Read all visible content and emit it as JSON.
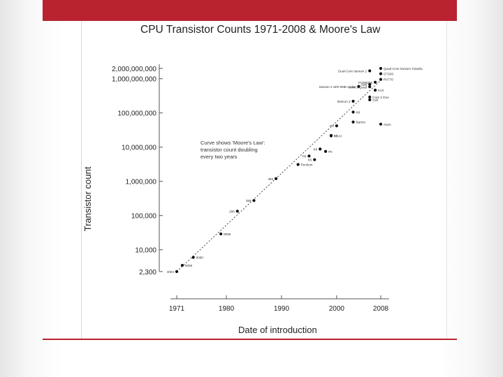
{
  "slide": {
    "accent_color": "#b8232f"
  },
  "chart_data": {
    "type": "scatter",
    "title": "CPU Transistor Counts 1971-2008 & Moore's Law",
    "xlabel": "Date of introduction",
    "ylabel": "Transistor count",
    "y_scale": "log",
    "xlim": [
      1971,
      2008
    ],
    "ylim": [
      2300,
      2000000000
    ],
    "x_ticks": [
      1971,
      1980,
      1990,
      2000,
      2008
    ],
    "y_ticks": [
      {
        "value": 2000000000,
        "label": "2,000,000,000"
      },
      {
        "value": 1000000000,
        "label": "1,000,000,000"
      },
      {
        "value": 100000000,
        "label": "100,000,000"
      },
      {
        "value": 10000000,
        "label": "10,000,000"
      },
      {
        "value": 1000000,
        "label": "1,000,000"
      },
      {
        "value": 100000,
        "label": "100,000"
      },
      {
        "value": 10000,
        "label": "10,000"
      },
      {
        "value": 2300,
        "label": "2,300"
      }
    ],
    "grid": false,
    "annotation": "Curve shows 'Moore's Law': transistor count doubling every two years",
    "trend_line": {
      "style": "dashed",
      "from": [
        1971,
        2300
      ],
      "to": [
        2008,
        900000000
      ]
    },
    "points": [
      {
        "label": "4004",
        "x": 1971,
        "y": 2300
      },
      {
        "label": "8008",
        "x": 1972,
        "y": 3500
      },
      {
        "label": "8080",
        "x": 1974,
        "y": 6000
      },
      {
        "label": "8086",
        "x": 1979,
        "y": 29000
      },
      {
        "label": "286",
        "x": 1982,
        "y": 134000
      },
      {
        "label": "386",
        "x": 1985,
        "y": 275000
      },
      {
        "label": "486",
        "x": 1989,
        "y": 1200000
      },
      {
        "label": "Pentium",
        "x": 1993,
        "y": 3100000
      },
      {
        "label": "K5",
        "x": 1996,
        "y": 4300000
      },
      {
        "label": "P6",
        "x": 1995,
        "y": 5500000
      },
      {
        "label": "K6",
        "x": 1997,
        "y": 8800000
      },
      {
        "label": "PII",
        "x": 1998,
        "y": 7500000
      },
      {
        "label": "K6-III",
        "x": 1999,
        "y": 21300000
      },
      {
        "label": "K7",
        "x": 1999,
        "y": 22000000
      },
      {
        "label": "P4",
        "x": 2000,
        "y": 42000000
      },
      {
        "label": "Barton",
        "x": 2003,
        "y": 54300000
      },
      {
        "label": "K8",
        "x": 2003,
        "y": 105900000
      },
      {
        "label": "Itanium 2",
        "x": 2003,
        "y": 220000000
      },
      {
        "label": "Atom",
        "x": 2008,
        "y": 47000000
      },
      {
        "label": "Core 2 Duo",
        "x": 2006,
        "y": 291000000
      },
      {
        "label": "Cell",
        "x": 2006,
        "y": 241000000
      },
      {
        "label": "K10",
        "x": 2007,
        "y": 463000000
      },
      {
        "label": "Itanium 2 with 9MB cache",
        "x": 2004,
        "y": 592000000
      },
      {
        "label": "Core 2 Quad",
        "x": 2006,
        "y": 582000000
      },
      {
        "label": "POWER6",
        "x": 2007,
        "y": 789000000
      },
      {
        "label": "G80",
        "x": 2006,
        "y": 681000000
      },
      {
        "label": "Dual-Core Itanium 2",
        "x": 2006,
        "y": 1700000000
      },
      {
        "label": "Quad-Core Itanium Tukwila",
        "x": 2008,
        "y": 2000000000
      },
      {
        "label": "GT200",
        "x": 2008,
        "y": 1400000000
      },
      {
        "label": "RV770",
        "x": 2008,
        "y": 956000000
      }
    ]
  }
}
